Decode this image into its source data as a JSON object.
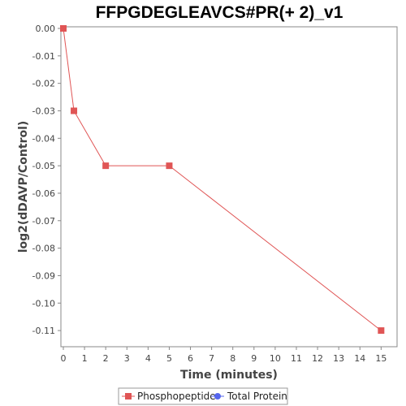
{
  "chart_data": {
    "type": "line",
    "title": "FFPGDEGLEAVCS#PR(+ 2)_v1",
    "xlabel": "Time (minutes)",
    "ylabel": "log2(dDAVP/Control)",
    "xlim": [
      0,
      15.6
    ],
    "ylim": [
      -0.115,
      0.0
    ],
    "xticks": [
      0,
      1,
      2,
      3,
      4,
      5,
      6,
      7,
      8,
      9,
      10,
      11,
      12,
      13,
      14,
      15
    ],
    "yticks": [
      0.0,
      -0.01,
      -0.02,
      -0.03,
      -0.04,
      -0.05,
      -0.06,
      -0.07,
      -0.08,
      -0.09,
      -0.1,
      -0.11
    ],
    "ytick_labels": [
      "0.00",
      "-0.01",
      "-0.02",
      "-0.03",
      "-0.04",
      "-0.05",
      "-0.06",
      "-0.07",
      "-0.08",
      "-0.09",
      "-0.10",
      "-0.11"
    ],
    "grid": false,
    "legend_position": "bottom-center",
    "series": [
      {
        "name": "Phosphopeptide",
        "color": "#e05555",
        "marker": "square",
        "x": [
          0,
          0.5,
          2,
          5,
          15
        ],
        "y": [
          0.0,
          -0.03,
          -0.05,
          -0.05,
          -0.11
        ]
      },
      {
        "name": "Total Protein",
        "color": "#5566ee",
        "marker": "circle",
        "x": [],
        "y": []
      }
    ]
  }
}
